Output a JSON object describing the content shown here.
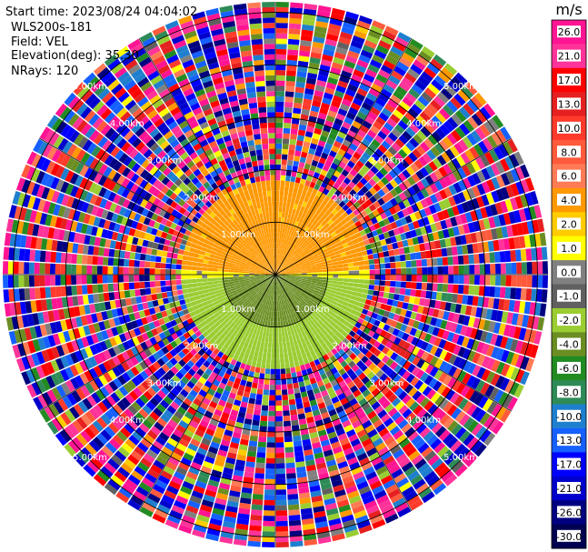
{
  "header": {
    "start_time": "Start time: 2023/08/24 04:04:02",
    "instrument": "WLS200s-181",
    "field": "Field: VEL",
    "elevation": "Elevation(deg): 35.30",
    "nrays": "NRays: 120"
  },
  "chart_data": {
    "type": "heatmap",
    "projection": "polar-ppi",
    "field": "VEL",
    "units": "m/s",
    "n_rays": 120,
    "elevation_deg": 35.3,
    "range_rings_km": [
      1.0,
      2.0,
      3.0,
      4.0,
      5.0
    ],
    "ring_labels": [
      "1.00km",
      "2.00km",
      "3.00km",
      "4.00km",
      "5.00km"
    ],
    "max_range_km": 5.2,
    "spoke_angles_deg": [
      0,
      30,
      60,
      90,
      120,
      150,
      180,
      210,
      240,
      270,
      300,
      330
    ],
    "valid_range_km": 1.85,
    "near_field_pattern": {
      "north_inner": 3.2,
      "north_outer": 2.6,
      "east": 0.3,
      "south_inner": -5.0,
      "south_outer": -3.0
    },
    "far_field": "noise"
  },
  "colorbar": {
    "unit": "m/s",
    "levels": [
      "26.0",
      "21.0",
      "17.0",
      "13.0",
      "10.0",
      "8.0",
      "6.0",
      "4.0",
      "2.0",
      "1.0",
      "0.0",
      "-1.0",
      "-2.0",
      "-4.0",
      "-6.0",
      "-8.0",
      "-10.0",
      "-13.0",
      "-17.0",
      "-21.0",
      "-26.0",
      "-30.0"
    ],
    "colors": [
      "#ff1493",
      "#ff3399",
      "#ff0000",
      "#e62020",
      "#ff3b2b",
      "#ff5a3c",
      "#ff7b55",
      "#ff9900",
      "#ffcc00",
      "#ffff00",
      "#808080",
      "#606060",
      "#9acd32",
      "#6b8e23",
      "#228b22",
      "#2e8b57",
      "#1f7fcf",
      "#1560ff",
      "#0000ff",
      "#0000cd",
      "#000080",
      "#000050"
    ]
  }
}
